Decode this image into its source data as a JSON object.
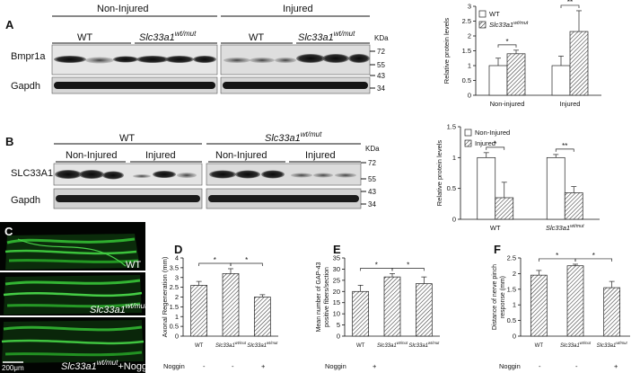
{
  "panels": [
    "A",
    "B",
    "C",
    "D",
    "E",
    "F"
  ],
  "blot_a": {
    "group_left": "Non-Injured",
    "group_right": "Injured",
    "wt": "WT",
    "mut": "Slc33a1",
    "mut_sup": "wt/mut",
    "kda": "KDa",
    "row1": "Bmpr1a",
    "row2": "Gapdh",
    "markers": [
      "72",
      "55",
      "43",
      "34"
    ]
  },
  "blot_b": {
    "wt_group": "WT",
    "mut": "Slc33a1",
    "mut_sup": "wt/mut",
    "non_injured": "Non-Injured",
    "injured": "Injured",
    "kda": "KDa",
    "row1": "SLC33A1",
    "row2": "Gapdh",
    "markers": [
      "72",
      "55",
      "43",
      "34"
    ]
  },
  "micro": {
    "label_wt": "WT",
    "label_mut": "Slc33a1",
    "label_mut_sup": "wt/mut",
    "label_noggin": "+Noggin",
    "scale": "200μm"
  },
  "noggin_row": {
    "label": "Noggin",
    "values": [
      "-",
      "-",
      "+"
    ]
  },
  "chart_data": [
    {
      "id": "a-chart",
      "type": "bar",
      "ylabel": "Relative protein levels",
      "ylim": [
        0,
        3
      ],
      "yticks": [
        "0",
        "0.5",
        "1",
        "1.5",
        "2",
        "2.5",
        "3"
      ],
      "categories": [
        "Non-injured",
        "Injured"
      ],
      "series": [
        {
          "name": "WT",
          "values": [
            1.0,
            1.0
          ],
          "errors": [
            0.25,
            0.32
          ]
        },
        {
          "name": "Slc33a1wt/mut",
          "values": [
            1.4,
            2.15
          ],
          "errors": [
            0.12,
            0.7
          ]
        }
      ],
      "significance": [
        "*",
        "**"
      ],
      "legend": "top-left"
    },
    {
      "id": "b-chart",
      "type": "bar",
      "ylabel": "Relative protein levels",
      "ylim": [
        0,
        1.5
      ],
      "yticks": [
        "0",
        "0.5",
        "1",
        "1.5"
      ],
      "categories": [
        "WT",
        "Slc33a1wt/mut"
      ],
      "series": [
        {
          "name": "Non-Injured",
          "values": [
            1.0,
            1.0
          ],
          "errors": [
            0.08,
            0.05
          ]
        },
        {
          "name": "Injured",
          "values": [
            0.35,
            0.43
          ],
          "errors": [
            0.25,
            0.1
          ]
        }
      ],
      "significance": [
        "*",
        "**"
      ],
      "legend": "top-left"
    },
    {
      "id": "d-chart",
      "type": "bar",
      "ylabel": "Axonal Regeneration (mm)",
      "ylim": [
        0,
        4
      ],
      "yticks": [
        "0",
        "0.5",
        "1",
        "1.5",
        "2",
        "2.5",
        "3",
        "3.5",
        "4"
      ],
      "categories": [
        "WT",
        "Slc33a1wt/mut",
        "Slc33a1wt/mut"
      ],
      "values": [
        2.6,
        3.2,
        2.0
      ],
      "errors": [
        0.2,
        0.25,
        0.12
      ],
      "significance": [
        "*",
        "*"
      ]
    },
    {
      "id": "e-chart",
      "type": "bar",
      "ylabel": "Mean number of GAP-43 positive fibers/section",
      "ylim": [
        0,
        35
      ],
      "yticks": [
        "0",
        "5",
        "10",
        "15",
        "20",
        "25",
        "30",
        "35"
      ],
      "categories": [
        "WT",
        "Slc33a1wt/mut",
        "Slc33a1wt/mut"
      ],
      "values": [
        20,
        26.5,
        23.5
      ],
      "errors": [
        2.8,
        1.5,
        3.0
      ],
      "significance": [
        "*",
        "*"
      ]
    },
    {
      "id": "f-chart",
      "type": "bar",
      "ylabel": "Distance of nerve pinch response (mm)",
      "ylim": [
        0,
        2.5
      ],
      "yticks": [
        "0",
        "0.5",
        "1",
        "1.5",
        "2",
        "2.5"
      ],
      "categories": [
        "WT",
        "Slc33a1wt/mut",
        "Slc33a1wt/mut"
      ],
      "values": [
        1.95,
        2.25,
        1.55
      ],
      "errors": [
        0.15,
        0.05,
        0.2
      ],
      "significance": [
        "*",
        "*"
      ]
    }
  ]
}
